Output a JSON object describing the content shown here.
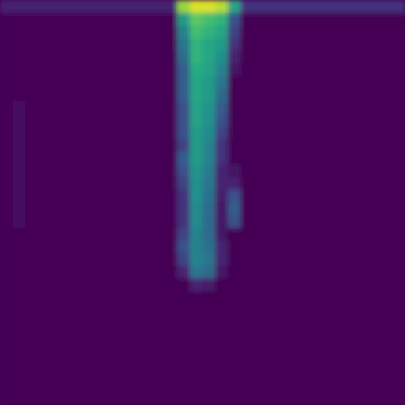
{
  "chart_data": {
    "type": "heatmap",
    "tick_labels": false,
    "zlim": [
      0,
      100
    ],
    "cells": [
      [
        10,
        10,
        10,
        10,
        10,
        10,
        10,
        10,
        10,
        10,
        10,
        10,
        10,
        10,
        85,
        95,
        95,
        90,
        60,
        15,
        15,
        15,
        15,
        15,
        15,
        15,
        15,
        15,
        15,
        15,
        15,
        15
      ],
      [
        0,
        0,
        0,
        0,
        0,
        0,
        0,
        0,
        0,
        0,
        0,
        0,
        0,
        0,
        55,
        75,
        70,
        65,
        25,
        0,
        0,
        0,
        0,
        0,
        0,
        0,
        0,
        0,
        0,
        0,
        0,
        0
      ],
      [
        0,
        0,
        0,
        0,
        0,
        0,
        0,
        0,
        0,
        0,
        0,
        0,
        0,
        0,
        45,
        70,
        65,
        60,
        20,
        0,
        0,
        0,
        0,
        0,
        0,
        0,
        0,
        0,
        0,
        0,
        0,
        0
      ],
      [
        0,
        0,
        0,
        0,
        0,
        0,
        0,
        0,
        0,
        0,
        0,
        0,
        0,
        0,
        40,
        65,
        60,
        55,
        15,
        0,
        0,
        0,
        0,
        0,
        0,
        0,
        0,
        0,
        0,
        0,
        0,
        0
      ],
      [
        0,
        0,
        0,
        0,
        0,
        0,
        0,
        0,
        0,
        0,
        0,
        0,
        0,
        0,
        35,
        65,
        60,
        50,
        10,
        0,
        0,
        0,
        0,
        0,
        0,
        0,
        0,
        0,
        0,
        0,
        0,
        0
      ],
      [
        0,
        0,
        0,
        0,
        0,
        0,
        0,
        0,
        0,
        0,
        0,
        0,
        0,
        0,
        30,
        62,
        58,
        45,
        5,
        0,
        0,
        0,
        0,
        0,
        0,
        0,
        0,
        0,
        0,
        0,
        0,
        0
      ],
      [
        0,
        0,
        0,
        0,
        0,
        0,
        0,
        0,
        0,
        0,
        0,
        0,
        0,
        0,
        30,
        60,
        55,
        40,
        0,
        0,
        0,
        0,
        0,
        0,
        0,
        0,
        0,
        0,
        0,
        0,
        0,
        0
      ],
      [
        0,
        0,
        0,
        0,
        0,
        0,
        0,
        0,
        0,
        0,
        0,
        0,
        0,
        0,
        30,
        60,
        55,
        35,
        0,
        0,
        0,
        0,
        0,
        0,
        0,
        0,
        0,
        0,
        0,
        0,
        0,
        0
      ],
      [
        0,
        4,
        0,
        0,
        0,
        0,
        0,
        0,
        0,
        0,
        0,
        0,
        0,
        0,
        25,
        58,
        52,
        30,
        0,
        0,
        0,
        0,
        0,
        0,
        0,
        0,
        0,
        0,
        0,
        0,
        0,
        0
      ],
      [
        0,
        4,
        0,
        0,
        0,
        0,
        0,
        0,
        0,
        0,
        0,
        0,
        0,
        0,
        25,
        58,
        50,
        25,
        0,
        0,
        0,
        0,
        0,
        0,
        0,
        0,
        0,
        0,
        0,
        0,
        0,
        0
      ],
      [
        0,
        4,
        0,
        0,
        0,
        0,
        0,
        0,
        0,
        0,
        0,
        0,
        0,
        0,
        25,
        55,
        48,
        20,
        0,
        0,
        0,
        0,
        0,
        0,
        0,
        0,
        0,
        0,
        0,
        0,
        0,
        0
      ],
      [
        0,
        4,
        0,
        0,
        0,
        0,
        0,
        0,
        0,
        0,
        0,
        0,
        0,
        0,
        20,
        55,
        45,
        15,
        0,
        0,
        0,
        0,
        0,
        0,
        0,
        0,
        0,
        0,
        0,
        0,
        0,
        0
      ],
      [
        0,
        4,
        0,
        0,
        0,
        0,
        0,
        0,
        0,
        0,
        0,
        0,
        0,
        0,
        30,
        55,
        45,
        15,
        0,
        0,
        0,
        0,
        0,
        0,
        0,
        0,
        0,
        0,
        0,
        0,
        0,
        0
      ],
      [
        0,
        4,
        0,
        0,
        0,
        0,
        0,
        0,
        0,
        0,
        0,
        0,
        0,
        0,
        25,
        52,
        42,
        10,
        5,
        0,
        0,
        0,
        0,
        0,
        0,
        0,
        0,
        0,
        0,
        0,
        0,
        0
      ],
      [
        0,
        4,
        0,
        0,
        0,
        0,
        0,
        0,
        0,
        0,
        0,
        0,
        0,
        0,
        20,
        50,
        40,
        10,
        10,
        0,
        0,
        0,
        0,
        0,
        0,
        0,
        0,
        0,
        0,
        0,
        0,
        0
      ],
      [
        0,
        4,
        0,
        0,
        0,
        0,
        0,
        0,
        0,
        0,
        0,
        0,
        0,
        0,
        15,
        50,
        38,
        8,
        25,
        0,
        0,
        0,
        0,
        0,
        0,
        0,
        0,
        0,
        0,
        0,
        0,
        0
      ],
      [
        0,
        4,
        0,
        0,
        0,
        0,
        0,
        0,
        0,
        0,
        0,
        0,
        0,
        0,
        15,
        48,
        36,
        5,
        30,
        0,
        0,
        0,
        0,
        0,
        0,
        0,
        0,
        0,
        0,
        0,
        0,
        0
      ],
      [
        0,
        4,
        0,
        0,
        0,
        0,
        0,
        0,
        0,
        0,
        0,
        0,
        0,
        0,
        15,
        48,
        35,
        5,
        25,
        0,
        0,
        0,
        0,
        0,
        0,
        0,
        0,
        0,
        0,
        0,
        0,
        0
      ],
      [
        0,
        0,
        0,
        0,
        0,
        0,
        0,
        0,
        0,
        0,
        0,
        0,
        0,
        0,
        20,
        45,
        35,
        5,
        0,
        0,
        0,
        0,
        0,
        0,
        0,
        0,
        0,
        0,
        0,
        0,
        0,
        0
      ],
      [
        0,
        0,
        0,
        0,
        0,
        0,
        0,
        0,
        0,
        0,
        0,
        0,
        0,
        0,
        25,
        45,
        38,
        10,
        0,
        0,
        0,
        0,
        0,
        0,
        0,
        0,
        0,
        0,
        0,
        0,
        0,
        0
      ],
      [
        0,
        0,
        0,
        0,
        0,
        0,
        0,
        0,
        0,
        0,
        0,
        0,
        0,
        0,
        20,
        45,
        40,
        10,
        0,
        0,
        0,
        0,
        0,
        0,
        0,
        0,
        0,
        0,
        0,
        0,
        0,
        0
      ],
      [
        0,
        0,
        0,
        0,
        0,
        0,
        0,
        0,
        0,
        0,
        0,
        0,
        0,
        0,
        10,
        40,
        35,
        5,
        0,
        0,
        0,
        0,
        0,
        0,
        0,
        0,
        0,
        0,
        0,
        0,
        0,
        0
      ],
      [
        0,
        0,
        0,
        0,
        0,
        0,
        0,
        0,
        0,
        0,
        0,
        0,
        0,
        0,
        0,
        10,
        8,
        0,
        0,
        0,
        0,
        0,
        0,
        0,
        0,
        0,
        0,
        0,
        0,
        0,
        0,
        0
      ],
      [
        0,
        0,
        0,
        0,
        0,
        0,
        0,
        0,
        0,
        0,
        0,
        0,
        0,
        0,
        0,
        0,
        0,
        0,
        0,
        0,
        0,
        0,
        0,
        0,
        0,
        0,
        0,
        0,
        0,
        0,
        0,
        0
      ],
      [
        0,
        0,
        0,
        0,
        0,
        0,
        0,
        0,
        0,
        0,
        0,
        0,
        0,
        0,
        0,
        0,
        0,
        0,
        0,
        0,
        0,
        0,
        0,
        0,
        0,
        0,
        0,
        0,
        0,
        0,
        0,
        0
      ],
      [
        0,
        0,
        0,
        0,
        0,
        0,
        0,
        0,
        0,
        0,
        0,
        0,
        0,
        0,
        0,
        0,
        0,
        0,
        0,
        0,
        0,
        0,
        0,
        0,
        0,
        0,
        0,
        0,
        0,
        0,
        0,
        0
      ],
      [
        0,
        0,
        0,
        0,
        0,
        0,
        0,
        0,
        0,
        0,
        0,
        0,
        0,
        0,
        0,
        0,
        0,
        0,
        0,
        0,
        0,
        0,
        0,
        0,
        0,
        0,
        0,
        0,
        0,
        0,
        0,
        0
      ],
      [
        0,
        0,
        0,
        0,
        0,
        0,
        0,
        0,
        0,
        0,
        0,
        0,
        0,
        0,
        0,
        0,
        0,
        0,
        0,
        0,
        0,
        0,
        0,
        0,
        0,
        0,
        0,
        0,
        0,
        0,
        0,
        0
      ],
      [
        0,
        0,
        0,
        0,
        0,
        0,
        0,
        0,
        0,
        0,
        0,
        0,
        0,
        0,
        0,
        0,
        0,
        0,
        0,
        0,
        0,
        0,
        0,
        0,
        0,
        0,
        0,
        0,
        0,
        0,
        0,
        0
      ],
      [
        0,
        0,
        0,
        0,
        0,
        0,
        0,
        0,
        0,
        0,
        0,
        0,
        0,
        0,
        0,
        0,
        0,
        0,
        0,
        0,
        0,
        0,
        0,
        0,
        0,
        0,
        0,
        0,
        0,
        0,
        0,
        0
      ],
      [
        0,
        0,
        0,
        0,
        0,
        0,
        0,
        0,
        0,
        0,
        0,
        0,
        0,
        0,
        0,
        0,
        0,
        0,
        0,
        0,
        0,
        0,
        0,
        0,
        0,
        0,
        0,
        0,
        0,
        0,
        0,
        0
      ],
      [
        0,
        0,
        0,
        0,
        0,
        0,
        0,
        0,
        0,
        0,
        0,
        0,
        0,
        0,
        0,
        0,
        0,
        0,
        0,
        0,
        0,
        0,
        0,
        0,
        0,
        0,
        0,
        0,
        0,
        0,
        0,
        0
      ]
    ]
  }
}
